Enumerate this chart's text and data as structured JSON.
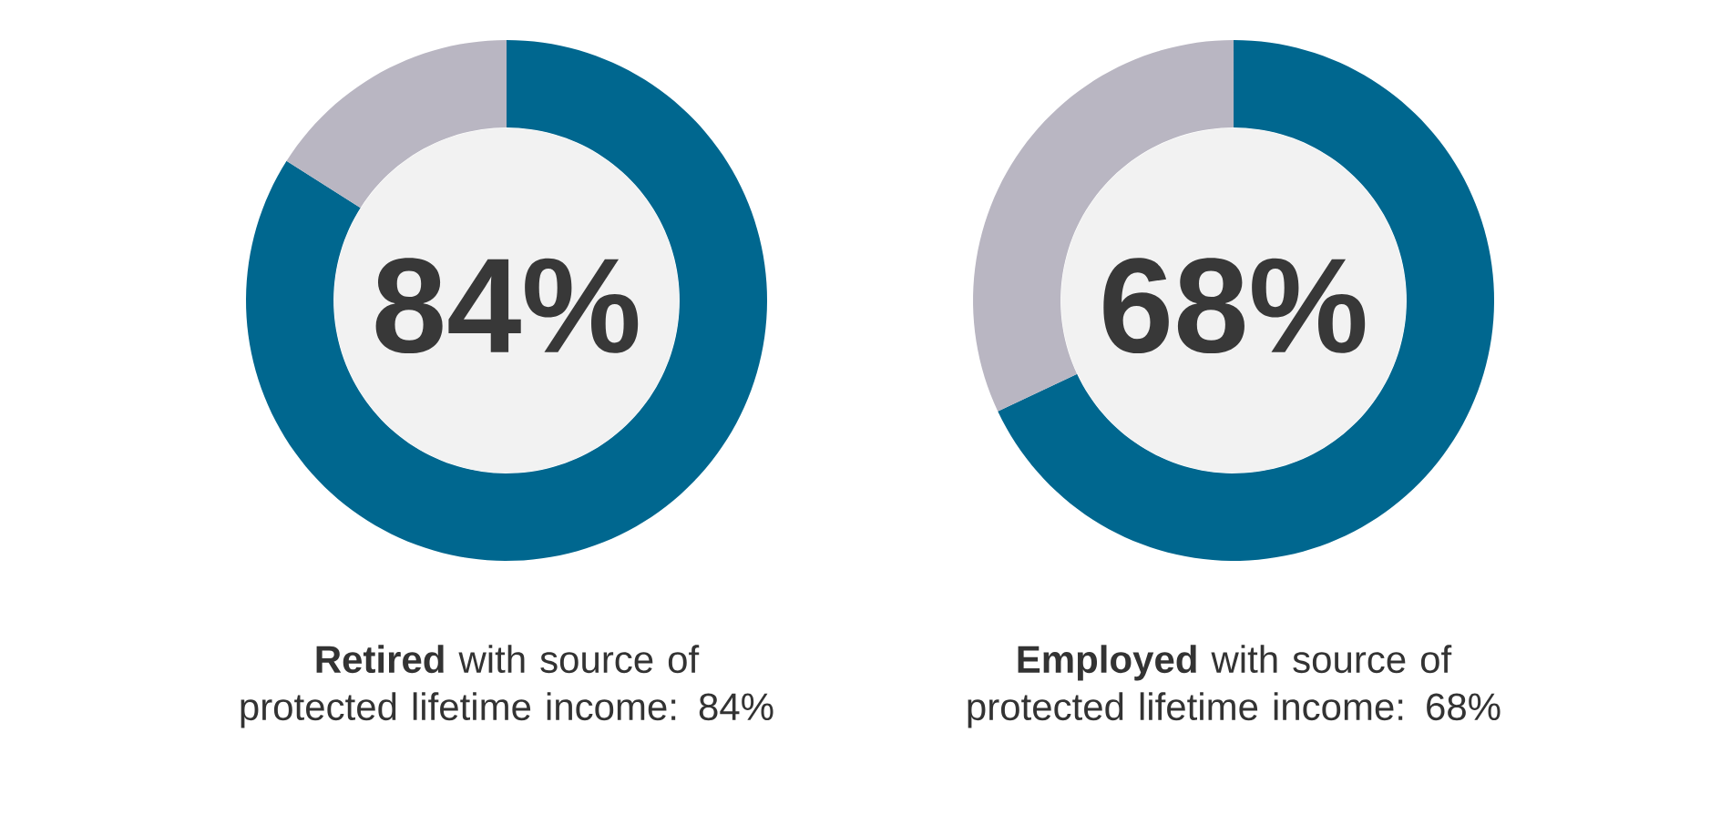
{
  "chart_data": [
    {
      "type": "donut",
      "title": "**Retired** with source of protected lifetime income: 84%",
      "categories": [
        null,
        null
      ],
      "values": [
        84,
        16
      ],
      "colors": [
        "#00678f",
        "#b9b6c2"
      ],
      "annotations": [
        "84%"
      ]
    },
    {
      "type": "donut",
      "title": "**Employed** with source of protected lifetime income: 68%",
      "categories": [
        null,
        null
      ],
      "values": [
        68,
        32
      ],
      "colors": [
        "#00678f",
        "#b9b6c2"
      ],
      "annotations": [
        "68%"
      ]
    }
  ]
}
